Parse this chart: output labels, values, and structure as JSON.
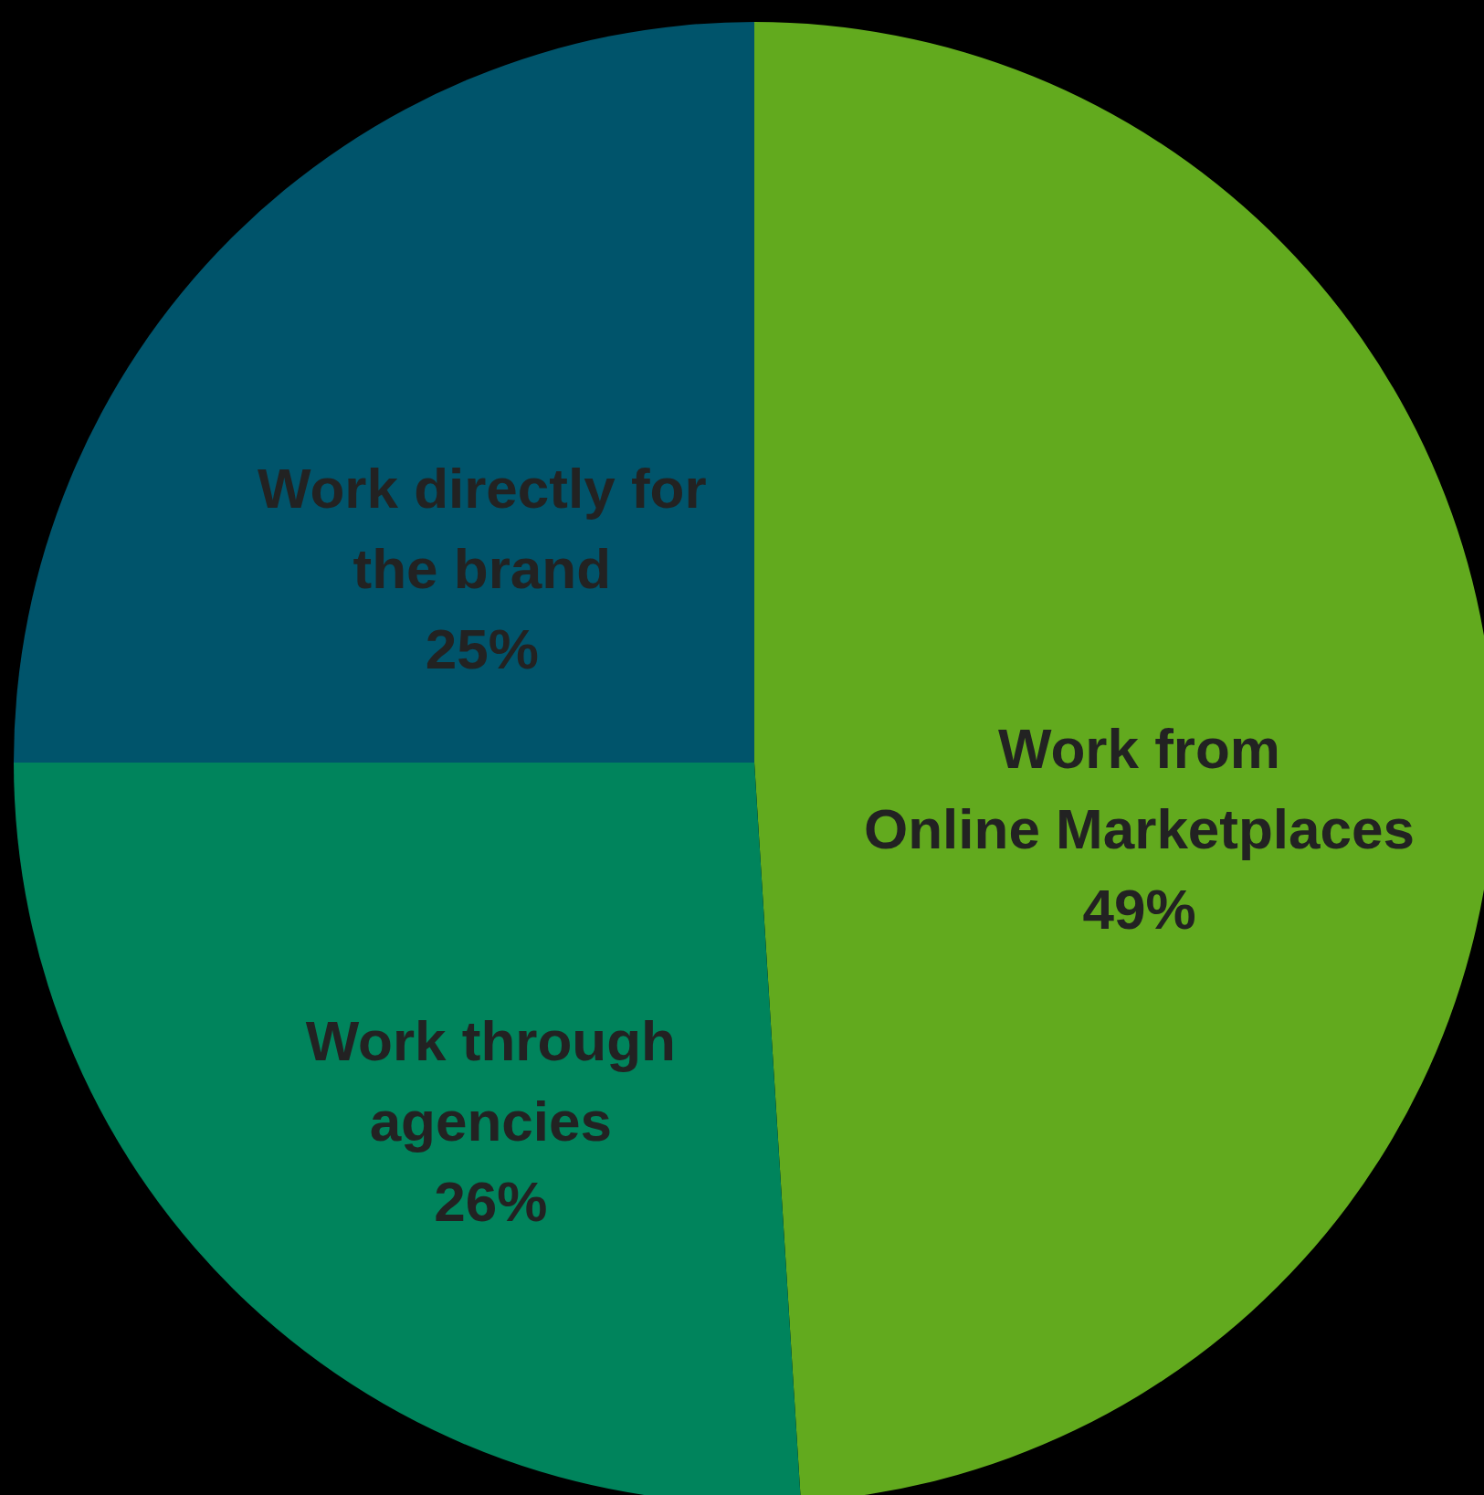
{
  "chart_data": {
    "type": "pie",
    "categories": [
      "Work from\nOnline Marketplaces",
      "Work through\nagencies",
      "Work directly for\nthe brand"
    ],
    "values": [
      49,
      26,
      25
    ],
    "colors": [
      "#62aa1e",
      "#00845c",
      "#00546b"
    ],
    "value_labels": [
      "49%",
      "26%",
      "25%"
    ]
  }
}
